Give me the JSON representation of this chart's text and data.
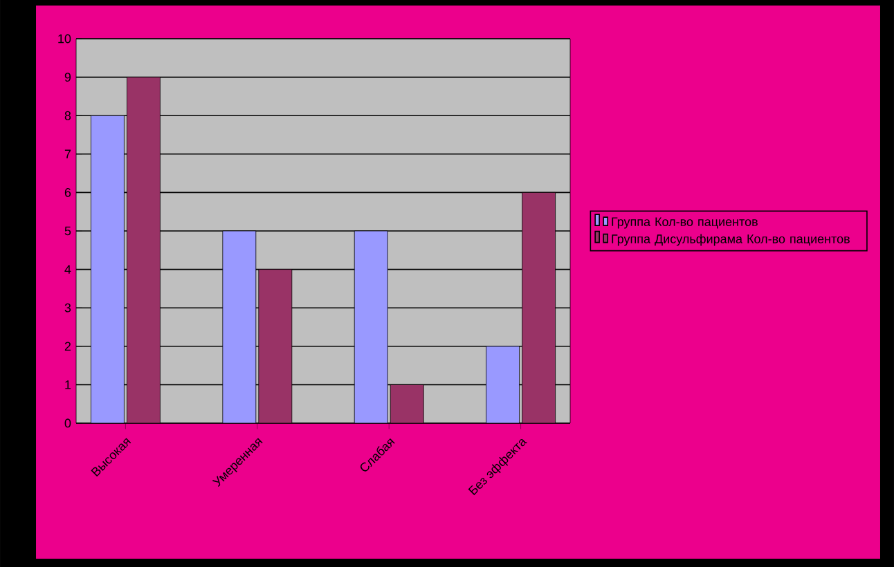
{
  "chart_data": {
    "type": "bar",
    "categories": [
      "Высокая",
      "Умеренная",
      "Слабая",
      "Без эффекта"
    ],
    "series": [
      {
        "name": "Группа Кол-во пациентов",
        "color": "#9999ff",
        "values": [
          8,
          5,
          5,
          2
        ]
      },
      {
        "name": "Группа Дисульфирама Кол-во пациентов",
        "color": "#993366",
        "values": [
          9,
          4,
          1,
          6
        ]
      }
    ],
    "ylim": [
      0,
      10
    ],
    "yticks": [
      0,
      1,
      2,
      3,
      4,
      5,
      6,
      7,
      8,
      9,
      10
    ],
    "grid": "y",
    "legend": "right"
  }
}
